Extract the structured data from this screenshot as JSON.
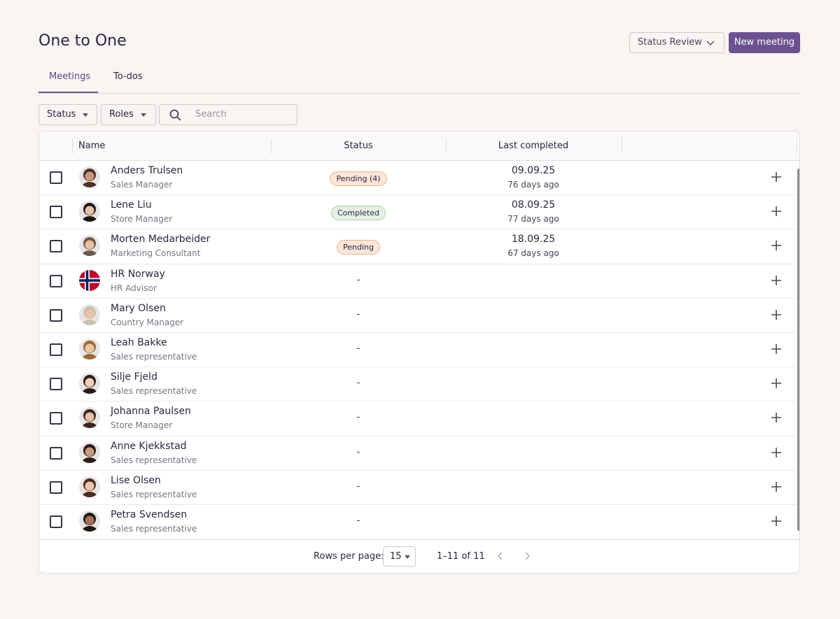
{
  "header": {
    "title": "One to One",
    "dropdown": "Status Review",
    "button": "New meeting"
  },
  "tabs": [
    "Meetings",
    "To-dos"
  ],
  "filters": {
    "status": "Status",
    "roles": "Roles",
    "search": "Search"
  },
  "table": {
    "columns": [
      "Name",
      "Status",
      "Last completed"
    ],
    "rows": [
      {
        "name": "Anders Trulsen",
        "role": "Sales Manager",
        "status": "Pending (4)",
        "status_bg": "#fbe6d8",
        "status_border": "#eab48f",
        "date": "09.09.25",
        "ago": "76 days ago"
      },
      {
        "name": "Lene Liu",
        "role": "Store Manager",
        "status": "Completed",
        "status_bg": "#e6f1e6",
        "status_border": "#a9cfa9",
        "date": "08.09.25",
        "ago": "77 days ago"
      },
      {
        "name": "Morten Medarbeider",
        "role": "Marketing Consultant",
        "status": "Pending",
        "status_bg": "#fbe6d8",
        "status_border": "#eab48f",
        "date": "18.09.25",
        "ago": "67 days ago"
      },
      {
        "name": "HR Norway",
        "role": "HR Advisor",
        "status": "-"
      },
      {
        "name": "Mary Olsen",
        "role": "Country Manager",
        "status": "-"
      },
      {
        "name": "Leah Bakke",
        "role": "Sales representative",
        "status": "-"
      },
      {
        "name": "Silje Fjeld",
        "role": "Sales representative",
        "status": "-"
      },
      {
        "name": "Johanna Paulsen",
        "role": "Store Manager",
        "status": "-"
      },
      {
        "name": "Anne Kjekkstad",
        "role": "Sales representative",
        "status": "-"
      },
      {
        "name": "Lise Olsen",
        "role": "Sales representative",
        "status": "-"
      },
      {
        "name": "Petra Svendsen",
        "role": "Sales representative",
        "status": "-"
      }
    ]
  },
  "pagination": {
    "label": "Rows per page:",
    "rows": "15",
    "range": "1–11 of 11"
  }
}
